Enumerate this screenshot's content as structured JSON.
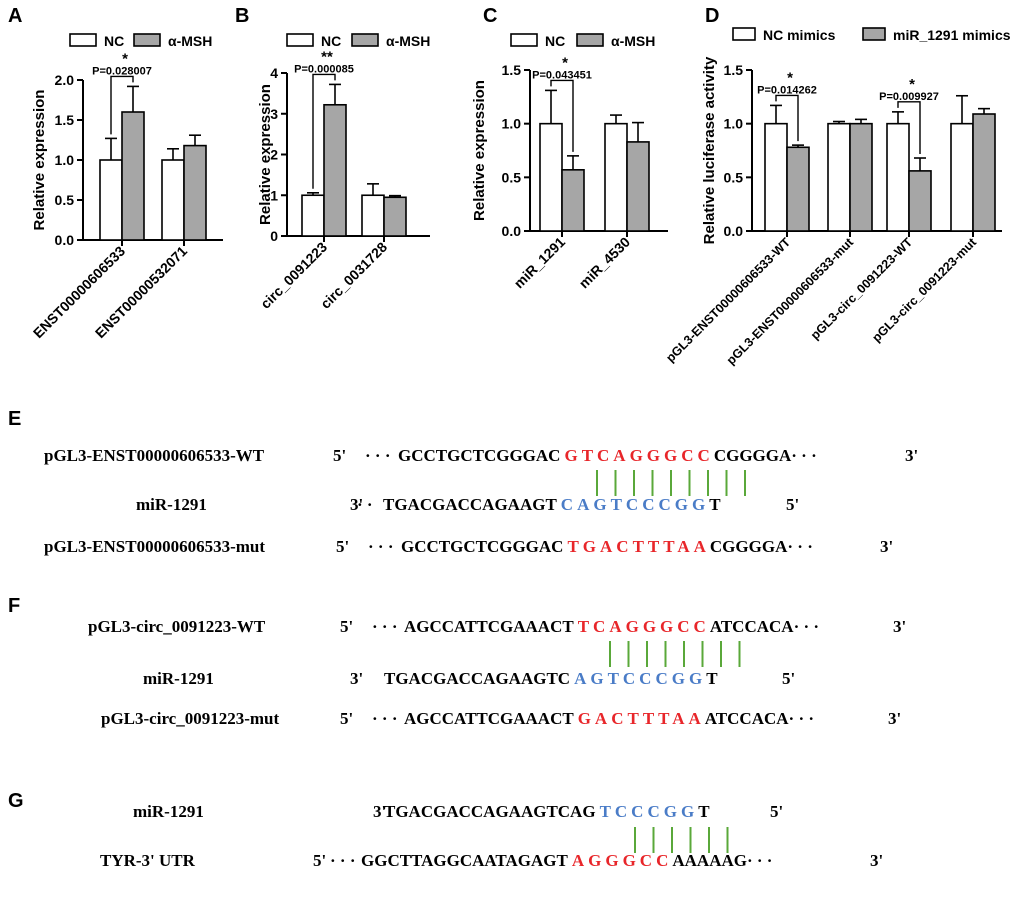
{
  "colors": {
    "nc": "#ffffff",
    "treat": "#a6a6a6",
    "red": "#e8262a",
    "blue": "#4a7cc7",
    "green": "#5aa83a"
  },
  "chart_data": [
    {
      "type": "bar",
      "panel": "A",
      "categories": [
        "ENST00000606533",
        "ENST00000532071"
      ],
      "series": [
        {
          "name": "NC",
          "values": [
            1.0,
            1.0
          ],
          "errors": [
            0.27,
            0.14
          ]
        },
        {
          "name": "α-MSH",
          "values": [
            1.6,
            1.18
          ],
          "errors": [
            0.32,
            0.13
          ]
        }
      ],
      "ylabel": "Relative  expression",
      "ylim": [
        0,
        2.0
      ],
      "yticks": [
        "0.0",
        "0.5",
        "1.0",
        "1.5",
        "2.0"
      ],
      "annotations": [
        {
          "group": 0,
          "p": "P=0.028007",
          "star": "*"
        }
      ]
    },
    {
      "type": "bar",
      "panel": "B",
      "categories": [
        "circ_0091223",
        "circ_0031728"
      ],
      "series": [
        {
          "name": "NC",
          "values": [
            1.0,
            1.0
          ],
          "errors": [
            0.06,
            0.28
          ]
        },
        {
          "name": "α-MSH",
          "values": [
            3.22,
            0.95
          ],
          "errors": [
            0.5,
            0.04
          ]
        }
      ],
      "ylabel": "Relative  expression",
      "ylim": [
        0,
        4
      ],
      "yticks": [
        "0",
        "1",
        "2",
        "3",
        "4"
      ],
      "annotations": [
        {
          "group": 0,
          "p": "P=0.000085",
          "star": "**"
        }
      ]
    },
    {
      "type": "bar",
      "panel": "C",
      "categories": [
        "miR_1291",
        "miR_4530"
      ],
      "series": [
        {
          "name": "NC",
          "values": [
            1.0,
            1.0
          ],
          "errors": [
            0.31,
            0.08
          ]
        },
        {
          "name": "α-MSH",
          "values": [
            0.57,
            0.83
          ],
          "errors": [
            0.13,
            0.18
          ]
        }
      ],
      "ylabel": "Relative  expression",
      "ylim": [
        0,
        1.5
      ],
      "yticks": [
        "0.0",
        "0.5",
        "1.0",
        "1.5"
      ],
      "annotations": [
        {
          "group": 0,
          "p": "P=0.043451",
          "star": "*"
        }
      ]
    },
    {
      "type": "bar",
      "panel": "D",
      "categories": [
        "pGL3-ENST00000606533-WT",
        "pGL3-ENST00000606533-mut",
        "pGL3-circ_0091223-WT",
        "pGL3-circ_0091223-mut"
      ],
      "series": [
        {
          "name": "NC mimics",
          "values": [
            1.0,
            1.0,
            1.0,
            1.0
          ],
          "errors": [
            0.17,
            0.02,
            0.11,
            0.26
          ]
        },
        {
          "name": "miR_1291 mimics",
          "values": [
            0.78,
            1.0,
            0.56,
            1.09
          ],
          "errors": [
            0.02,
            0.04,
            0.12,
            0.05
          ]
        }
      ],
      "ylabel": "Relative luciferase activity",
      "ylim": [
        0,
        1.5
      ],
      "yticks": [
        "0.0",
        "0.5",
        "1.0",
        "1.5"
      ],
      "annotations": [
        {
          "group": 0,
          "p": "P=0.014262",
          "star": "*"
        },
        {
          "group": 2,
          "p": "P=0.009927",
          "star": "*"
        }
      ]
    }
  ],
  "sequences": [
    {
      "panel": "E",
      "rows": [
        {
          "label": "pGL3-ENST00000606533-WT",
          "end5": "5'",
          "dots_pre": "· · ·",
          "pre": "GCCTGCTCGGGAC",
          "hl": "GTCAGGGCC",
          "post": "CGGGGA",
          "dots_post": "· · ·",
          "end3": "3'",
          "hl_color": "red"
        },
        {
          "label": "miR-1291",
          "end5": "3'",
          "dots_pre": "· ·",
          "pre": "TGACGACCAGAAGT",
          "hl": "CAGTCCCGG",
          "post": "T",
          "dots_post": "",
          "end3": "5'",
          "hl_color": "blue"
        },
        {
          "label": "pGL3-ENST00000606533-mut",
          "end5": "5'",
          "dots_pre": "· · ·",
          "pre": "GCCTGCTCGGGAC",
          "hl": "TGACTTTAA",
          "post": "CGGGGA",
          "dots_post": "· · ·",
          "end3": "3'",
          "hl_color": "red"
        }
      ]
    },
    {
      "panel": "F",
      "rows": [
        {
          "label": "pGL3-circ_0091223-WT",
          "end5": "5'",
          "dots_pre": "· · ·",
          "pre": "AGCCATTCGAAACT",
          "hl": "TCAGGGCC",
          "post": "ATCCACA",
          "dots_post": "· · ·",
          "end3": "3'",
          "hl_color": "red"
        },
        {
          "label": "miR-1291",
          "end5": "3'",
          "dots_pre": "",
          "pre": "TGACGACCAGAAGTC",
          "hl": "AGTCCCGG",
          "post": "T",
          "dots_post": "",
          "end3": "5'",
          "hl_color": "blue"
        },
        {
          "label": "pGL3-circ_0091223-mut",
          "end5": "5'",
          "dots_pre": "· · ·",
          "pre": "AGCCATTCGAAACT",
          "hl": "GACTTTAA",
          "post": "ATCCACA",
          "dots_post": "· · ·",
          "end3": "3'",
          "hl_color": "red"
        }
      ]
    },
    {
      "panel": "G",
      "rows": [
        {
          "label": "miR-1291",
          "end5": "3'",
          "dots_pre": "",
          "pre": "TGACGACCAGAAGTCAG",
          "hl": "TCCCGG",
          "post": "T",
          "dots_post": "",
          "end3": "5'",
          "hl_color": "blue"
        },
        {
          "label": "TYR-3' UTR",
          "end5": "5'",
          "dots_pre": "· · ·",
          "pre": "GGCTTAGGCAATAGAGT",
          "hl": "AGGGCC",
          "post": "AAAAAG",
          "dots_post": "· · ·",
          "end3": "3'",
          "hl_color": "red"
        }
      ]
    }
  ]
}
